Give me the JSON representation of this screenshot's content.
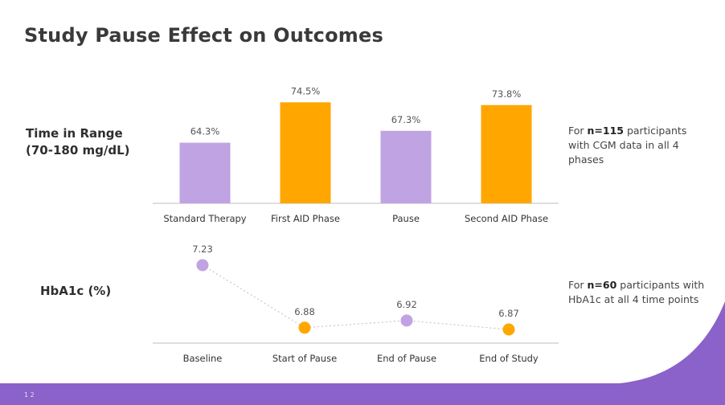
{
  "title": "Study Pause Effect on Outcomes",
  "page_number": "1 2",
  "colors": {
    "purple": "#c0a3e3",
    "orange": "#ffa600",
    "footer_purple": "#8a62c9",
    "axis": "#bdbdbd",
    "dotted_line": "#c8c8c8"
  },
  "rows": {
    "tir_label_line1": "Time in Range",
    "tir_label_line2": "(70-180 mg/dL)",
    "hba1c_label": "HbA1c (%)"
  },
  "notes": {
    "tir": {
      "prefix": "For ",
      "bold": "n=115",
      "rest": " participants with CGM data in all 4 phases"
    },
    "hba1c": {
      "prefix": "For ",
      "bold": "n=60",
      "rest": " participants with HbA1c at all 4 time points"
    }
  },
  "chart_data": [
    {
      "type": "bar",
      "categories": [
        "Standard Therapy",
        "First AID Phase",
        "Pause",
        "Second AID Phase"
      ],
      "values": [
        64.3,
        74.5,
        67.3,
        73.8
      ],
      "value_labels": [
        "64.3%",
        "74.5%",
        "67.3%",
        "73.8%"
      ],
      "colors": [
        "#c0a3e3",
        "#ffa600",
        "#c0a3e3",
        "#ffa600"
      ],
      "ylim": [
        49,
        77
      ],
      "grid": false,
      "legend": "none"
    },
    {
      "type": "line",
      "categories": [
        "Baseline",
        "Start of Pause",
        "End of Pause",
        "End of Study"
      ],
      "values": [
        7.23,
        6.88,
        6.92,
        6.87
      ],
      "value_labels": [
        "7.23",
        "6.88",
        "6.92",
        "6.87"
      ],
      "colors": [
        "#c0a3e3",
        "#ffa600",
        "#c0a3e3",
        "#ffa600"
      ],
      "line_style": "dotted",
      "ylim": [
        6.5,
        7.4
      ],
      "grid": false,
      "legend": "none"
    }
  ]
}
